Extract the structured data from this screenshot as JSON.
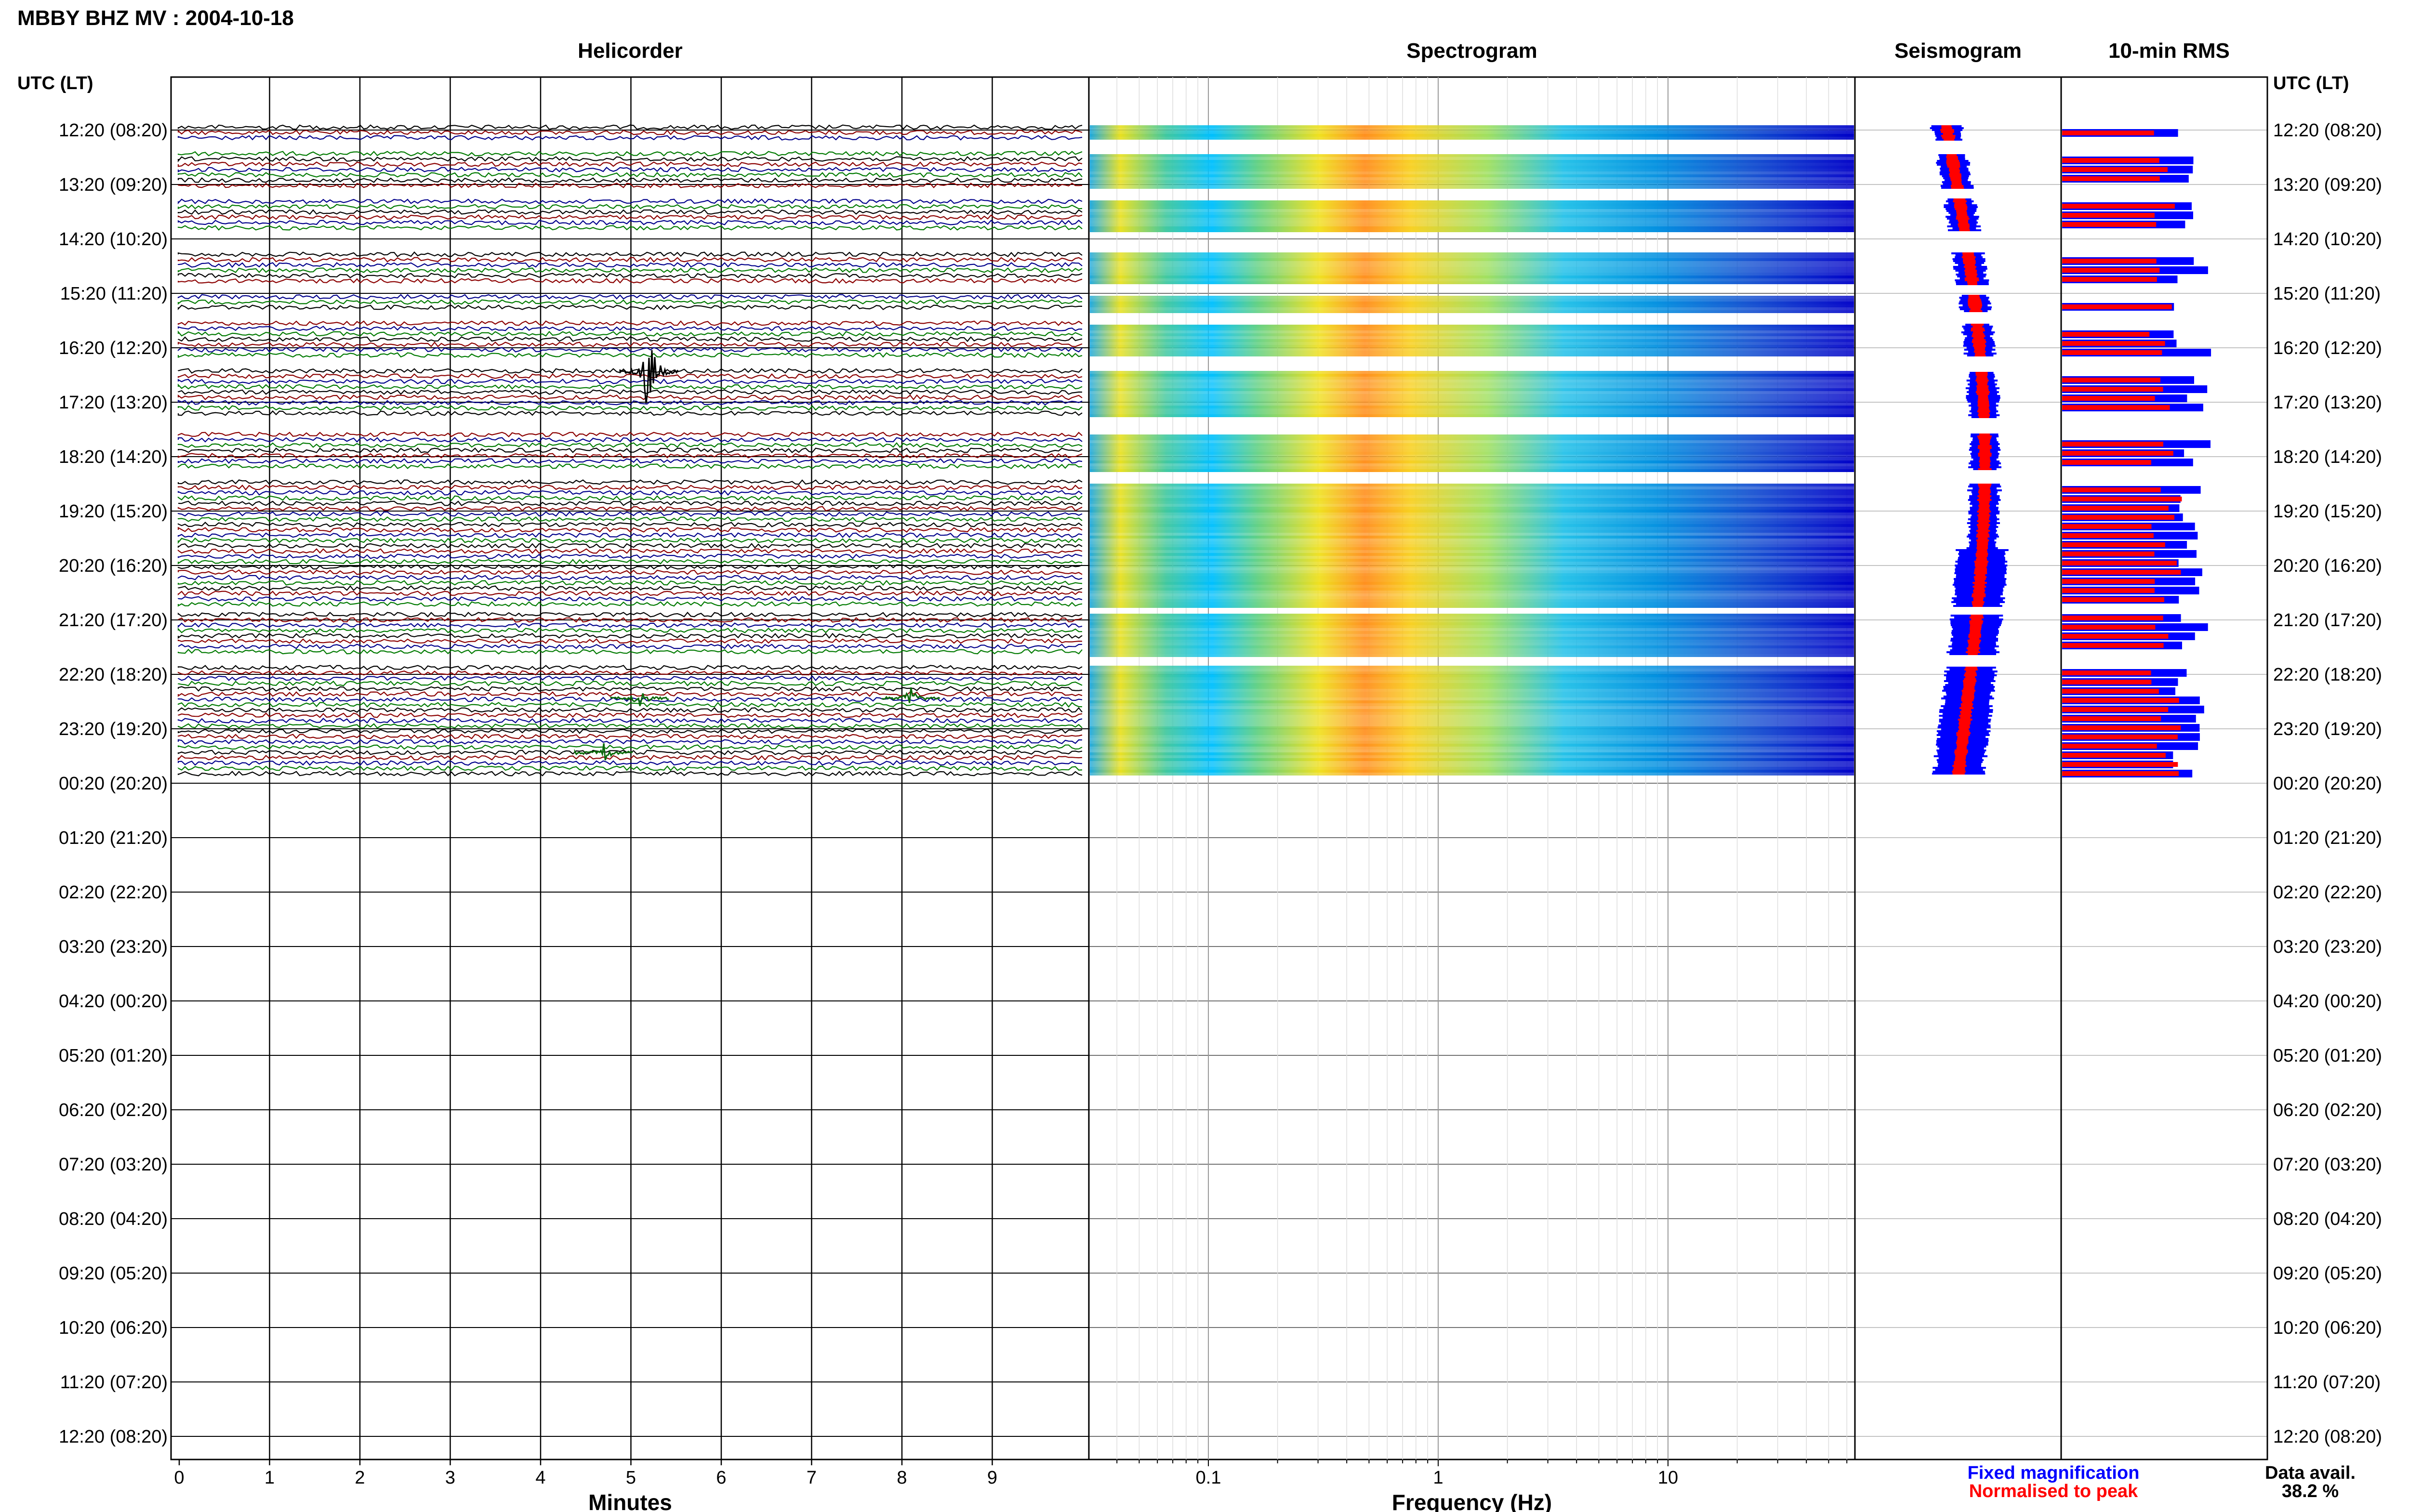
{
  "page_title": "MBBY BHZ MV : 2004-10-18",
  "panels": {
    "helicorder": "Helicorder",
    "spectrogram": "Spectrogram",
    "seismogram": "Seismogram",
    "rms": "10-min RMS"
  },
  "time_axis_title": "UTC (LT)",
  "time_labels": [
    "12:20 (08:20)",
    "13:20 (09:20)",
    "14:20 (10:20)",
    "15:20 (11:20)",
    "16:20 (12:20)",
    "17:20 (13:20)",
    "18:20 (14:20)",
    "19:20 (15:20)",
    "20:20 (16:20)",
    "21:20 (17:20)",
    "22:20 (18:20)",
    "23:20 (19:20)",
    "00:20 (20:20)",
    "01:20 (21:20)",
    "02:20 (22:20)",
    "03:20 (23:20)",
    "04:20 (00:20)",
    "05:20 (01:20)",
    "06:20 (02:20)",
    "07:20 (03:20)",
    "08:20 (04:20)",
    "09:20 (05:20)",
    "10:20 (06:20)",
    "11:20 (07:20)",
    "12:20 (08:20)"
  ],
  "x_axes": {
    "minutes_label": "Minutes",
    "minutes_ticks": [
      "0",
      "1",
      "2",
      "3",
      "4",
      "5",
      "6",
      "7",
      "8",
      "9"
    ],
    "frequency_label": "Frequency (Hz)",
    "frequency_ticks": [
      "0.1",
      "1",
      "10"
    ]
  },
  "legend": {
    "fixed": "Fixed magnification",
    "normalised": "Normalised to peak",
    "fixed_color": "#0000ff",
    "normalised_color": "#ff0000"
  },
  "availability": {
    "label": "Data avail.",
    "value": "38.2 %"
  },
  "colors": {
    "trace_black": "#000000",
    "trace_red": "#8b0000",
    "trace_blue": "#00008b",
    "trace_green": "#007a00",
    "spec_low": "#0000c8",
    "spec_high": "#ff2000"
  },
  "chart_data": {
    "type": "heatmap",
    "station": "MBBY BHZ MV",
    "date": "2004-10-18",
    "utc_hours_with_data": [
      "12:20",
      "13:20",
      "14:20",
      "15:20",
      "16:20",
      "17:20",
      "18:20",
      "19:20",
      "20:20",
      "21:20",
      "22:20",
      "23:20"
    ],
    "data_availability_percent": 38.2,
    "minutes_range": [
      0,
      10
    ],
    "frequency_range_hz": [
      0.03,
      50
    ],
    "frequency_scale": "log",
    "events": [
      {
        "hour": "16:20",
        "minute": 5.2,
        "description": "large amplitude event"
      },
      {
        "hour": "22:20",
        "minute": 5.1
      },
      {
        "hour": "23:20",
        "minute": 4.7
      },
      {
        "hour": "22:20",
        "minute": 8.1
      }
    ]
  }
}
